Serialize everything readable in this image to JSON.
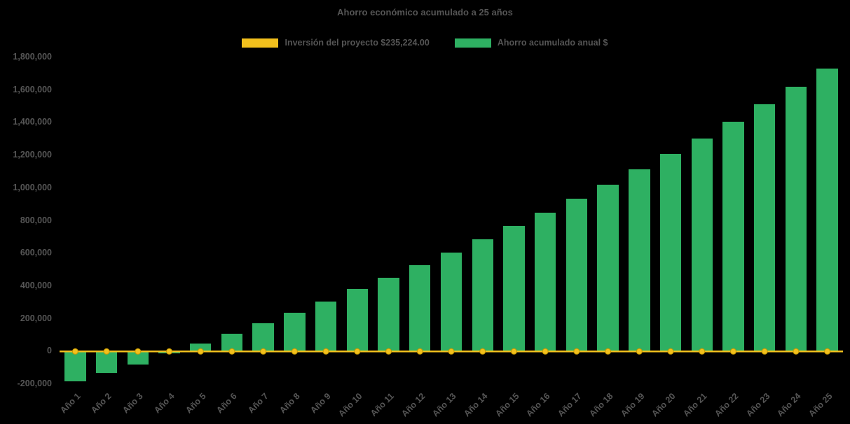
{
  "chart_data": {
    "type": "bar",
    "title": "Ahorro económico acumulado a 25 años",
    "categories": [
      "Año 1",
      "Año 2",
      "Año 3",
      "Año 4",
      "Año 5",
      "Año 6",
      "Año 7",
      "Año 8",
      "Año 9",
      "Año 10",
      "Año 11",
      "Año 12",
      "Año 13",
      "Año 14",
      "Año 15",
      "Año 16",
      "Año 17",
      "Año 18",
      "Año 19",
      "Año 20",
      "Año 21",
      "Año 22",
      "Año 23",
      "Año 24",
      "Año 25"
    ],
    "series": [
      {
        "name": "Inversión del proyecto $235,224.00",
        "type": "line",
        "color": "#F2C01D",
        "marker_edge_color": "#C99A00",
        "values": [
          0,
          0,
          0,
          0,
          0,
          0,
          0,
          0,
          0,
          0,
          0,
          0,
          0,
          0,
          0,
          0,
          0,
          0,
          0,
          0,
          0,
          0,
          0,
          0,
          0
        ]
      },
      {
        "name": "Ahorro acumulado anual $",
        "type": "bar",
        "color": "#2EB062",
        "values": [
          -185000,
          -130000,
          -78000,
          -12000,
          50000,
          110000,
          172000,
          238000,
          305000,
          382000,
          452000,
          528000,
          607000,
          685000,
          768000,
          848000,
          933000,
          1022000,
          1113000,
          1207000,
          1305000,
          1407000,
          1512000,
          1620000,
          1730000
        ]
      }
    ],
    "xlabel": "",
    "ylabel": "",
    "ylim": [
      -200000,
      1800000
    ],
    "ytick_step": 200000,
    "grid": false,
    "legend_position": "top",
    "background_color": "#000000",
    "text_color": "#565656"
  }
}
